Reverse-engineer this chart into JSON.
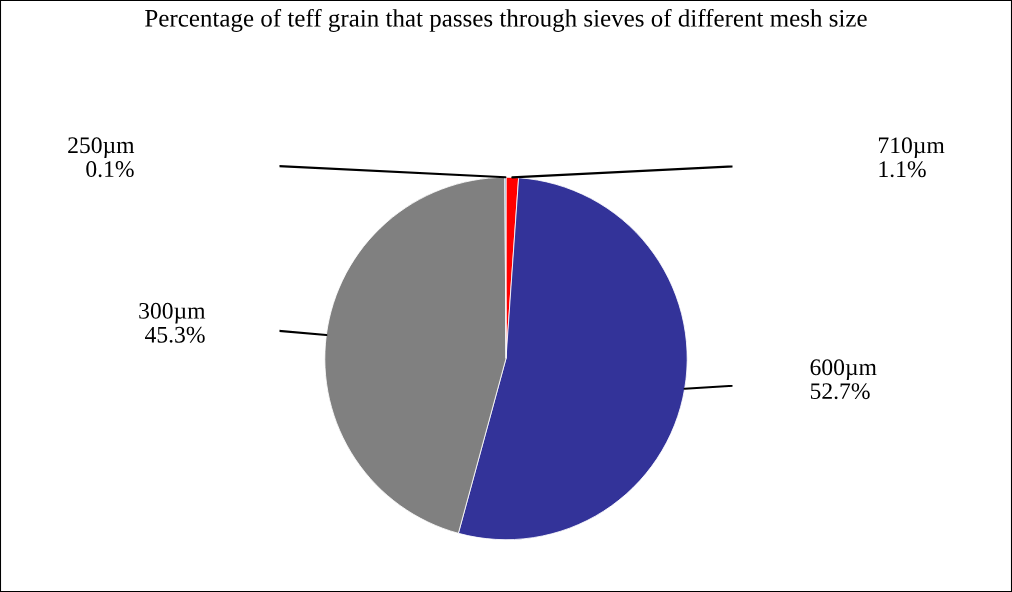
{
  "chart_data": {
    "type": "pie",
    "title": "Percentage of teff grain that passes through sieves of different mesh size",
    "categories": [
      "710µm",
      "600µm",
      "300µm",
      "250µm"
    ],
    "values": [
      1.1,
      52.7,
      45.3,
      0.1
    ],
    "value_labels": [
      "1.1%",
      "52.7%",
      "45.3%",
      "0.1%"
    ],
    "colors": [
      "#ff0000",
      "#333399",
      "#808080",
      "#4f81bd"
    ],
    "legend": false
  }
}
